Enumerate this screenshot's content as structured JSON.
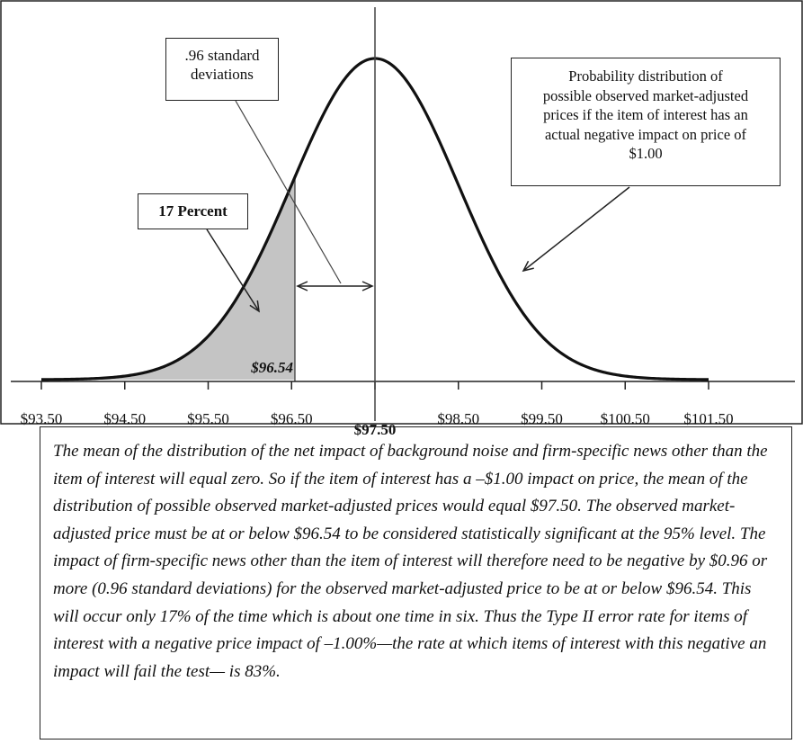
{
  "chart_data": {
    "type": "area",
    "distribution": {
      "kind": "normal",
      "mean": 97.5,
      "sd": 1.0
    },
    "x_range": [
      93.5,
      101.5
    ],
    "ticks_below": [
      "$93.50",
      "$94.50",
      "$95.50",
      "$96.50",
      "$98.50",
      "$99.50",
      "$100.50",
      "$101.50"
    ],
    "tick_values": [
      93.5,
      94.5,
      95.5,
      96.5,
      97.5,
      98.5,
      99.5,
      100.5,
      101.5
    ],
    "mean_label": "$97.50",
    "mean_value": 97.5,
    "threshold_value": 96.54,
    "threshold_label": "$96.54",
    "shaded_fraction": 0.17,
    "annotations": {
      "shaded_area": "17 Percent",
      "std_dev_line1": ".96 standard",
      "std_dev_line2": "deviations",
      "dist_lines": [
        "Probability distribution of",
        "possible observed market-adjusted",
        "prices if the item of interest has an",
        "actual negative impact on price of",
        "$1.00"
      ]
    }
  },
  "caption": "The mean of the distribution of the net impact of background noise and firm-specific news other than the item of interest will equal zero. So if the item of interest has a –$1.00 impact on price, the mean of the distribution of possible observed market-adjusted prices would equal $97.50. The observed market-adjusted price must be at or below $96.54 to be considered statistically significant at the 95% level. The impact of firm-specific news other than the item of interest will therefore need to be negative by $0.96 or more (0.96 standard deviations) for the observed market-adjusted price to be at or below $96.54. This will occur only 17% of the time which is about one time in six. Thus the Type II error rate for items of interest with a negative price impact of –1.00%—the rate at which items of interest with this negative an impact will fail the test— is 83%."
}
